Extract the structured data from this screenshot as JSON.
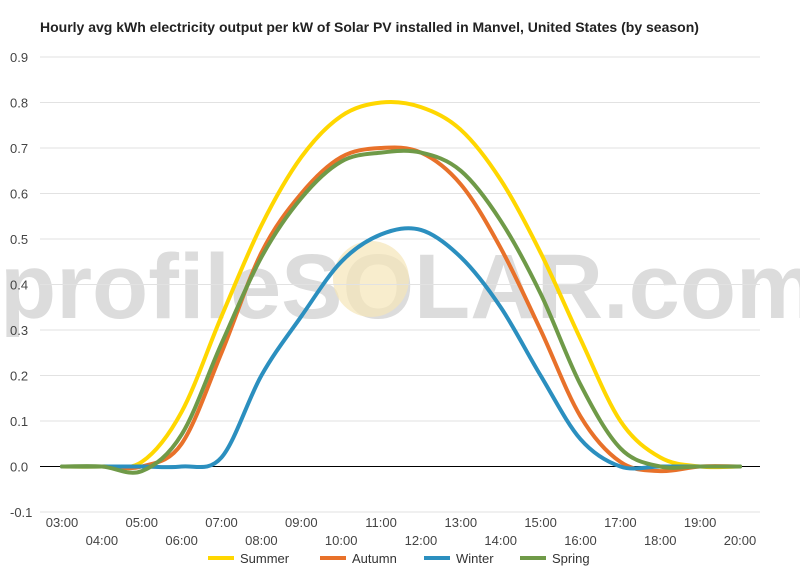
{
  "chart_data": {
    "type": "line",
    "title": "Hourly avg kWh electricity output per kW of Solar PV installed in Manvel, United States (by season)",
    "xlabel": "",
    "ylabel": "",
    "x": [
      "03:00",
      "04:00",
      "05:00",
      "06:00",
      "07:00",
      "08:00",
      "09:00",
      "10:00",
      "11:00",
      "12:00",
      "13:00",
      "14:00",
      "15:00",
      "16:00",
      "17:00",
      "18:00",
      "19:00",
      "20:00"
    ],
    "ylim": [
      -0.1,
      0.9
    ],
    "yticks": [
      "0.9",
      "0.8",
      "0.7",
      "0.6",
      "0.5",
      "0.4",
      "0.3",
      "0.2",
      "0.1",
      "0.0",
      "-0.1"
    ],
    "grid": true,
    "legend": "bottom",
    "watermark": "profileSOLAR.com",
    "series": [
      {
        "name": "Summer",
        "color": "#FFD700",
        "values": [
          0,
          0,
          0.01,
          0.12,
          0.33,
          0.53,
          0.68,
          0.77,
          0.8,
          0.79,
          0.74,
          0.63,
          0.47,
          0.28,
          0.1,
          0.02,
          0,
          0
        ]
      },
      {
        "name": "Autumn",
        "color": "#E8712A",
        "values": [
          0,
          0,
          0,
          0.05,
          0.25,
          0.47,
          0.6,
          0.68,
          0.7,
          0.69,
          0.62,
          0.48,
          0.3,
          0.11,
          0.01,
          -0.01,
          0,
          0
        ]
      },
      {
        "name": "Winter",
        "color": "#2B8FBF",
        "values": [
          0,
          0,
          0,
          0,
          0.02,
          0.2,
          0.33,
          0.45,
          0.51,
          0.52,
          0.46,
          0.35,
          0.2,
          0.06,
          0,
          0,
          0,
          0
        ]
      },
      {
        "name": "Spring",
        "color": "#6F9A48",
        "values": [
          0,
          0,
          -0.01,
          0.07,
          0.27,
          0.46,
          0.59,
          0.67,
          0.69,
          0.69,
          0.65,
          0.54,
          0.38,
          0.18,
          0.04,
          0,
          0,
          0
        ]
      }
    ]
  }
}
